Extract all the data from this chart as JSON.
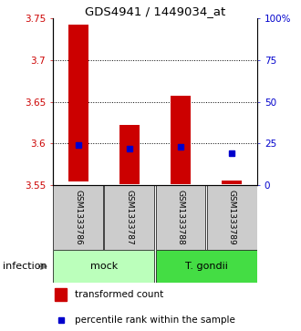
{
  "title": "GDS4941 / 1449034_at",
  "samples": [
    "GSM1333786",
    "GSM1333787",
    "GSM1333788",
    "GSM1333789"
  ],
  "bar_bottoms": [
    3.555,
    3.551,
    3.551,
    3.551
  ],
  "bar_tops": [
    3.742,
    3.622,
    3.657,
    3.556
  ],
  "percentiles": [
    24,
    22,
    23,
    19
  ],
  "ylim_left": [
    3.55,
    3.75
  ],
  "ylim_right": [
    0,
    100
  ],
  "yticks_left": [
    3.55,
    3.6,
    3.65,
    3.7,
    3.75
  ],
  "yticks_right": [
    0,
    25,
    50,
    75,
    100
  ],
  "ytick_labels_left": [
    "3.55",
    "3.6",
    "3.65",
    "3.7",
    "3.75"
  ],
  "ytick_labels_right": [
    "0",
    "25",
    "50",
    "75",
    "100%"
  ],
  "grid_vals": [
    3.6,
    3.65,
    3.7
  ],
  "groups": [
    {
      "label": "mock",
      "samples": [
        0,
        1
      ],
      "color": "#bbffbb"
    },
    {
      "label": "T. gondii",
      "samples": [
        2,
        3
      ],
      "color": "#44dd44"
    }
  ],
  "factor_label": "infection",
  "bar_color": "#cc0000",
  "dot_color": "#0000cc",
  "bg_color": "#cccccc",
  "legend_red_label": "transformed count",
  "legend_blue_label": "percentile rank within the sample"
}
